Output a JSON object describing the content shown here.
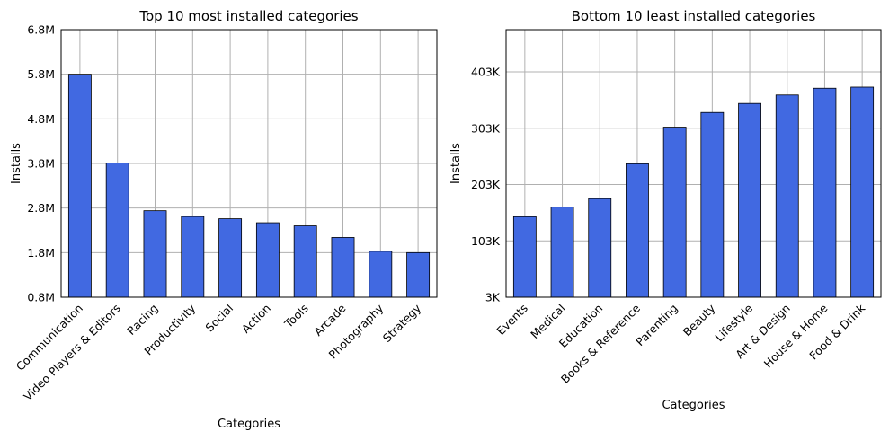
{
  "colors": {
    "bar_fill": "#4169e1",
    "bar_edge": "#000000",
    "grid": "#b0b0b0",
    "axes": "#000000",
    "background": "#ffffff"
  },
  "chart_data": [
    {
      "type": "bar",
      "title": "Top 10 most installed categories",
      "xlabel": "Categories",
      "ylabel": "Installs",
      "categories": [
        "Communication",
        "Video Players & Editors",
        "Racing",
        "Productivity",
        "Social",
        "Action",
        "Tools",
        "Arcade",
        "Photography",
        "Strategy"
      ],
      "values": [
        5800000,
        3810000,
        2740000,
        2610000,
        2560000,
        2470000,
        2400000,
        2140000,
        1830000,
        1800000
      ],
      "ylim": [
        800000,
        6800000
      ],
      "yticks": [
        800000,
        1800000,
        2800000,
        3800000,
        4800000,
        5800000,
        6800000
      ],
      "ytick_labels": [
        "0.8M",
        "1.8M",
        "2.8M",
        "3.8M",
        "4.8M",
        "5.8M",
        "6.8M"
      ],
      "grid": true,
      "legend": "none"
    },
    {
      "type": "bar",
      "title": "Bottom 10 least installed categories",
      "xlabel": "Categories",
      "ylabel": "Installs",
      "categories": [
        "Events",
        "Medical",
        "Education",
        "Books & Reference",
        "Parenting",
        "Beauty",
        "Lifestyle",
        "Art & Design",
        "House & Home",
        "Food & Drink"
      ],
      "values": [
        146000,
        163000,
        178000,
        240000,
        305000,
        331000,
        347000,
        362000,
        374000,
        376000
      ],
      "ylim": [
        3000,
        478000
      ],
      "yticks": [
        3000,
        103000,
        203000,
        303000,
        403000
      ],
      "ytick_labels": [
        "3K",
        "103K",
        "203K",
        "303K",
        "403K"
      ],
      "grid": true,
      "legend": "none"
    }
  ]
}
